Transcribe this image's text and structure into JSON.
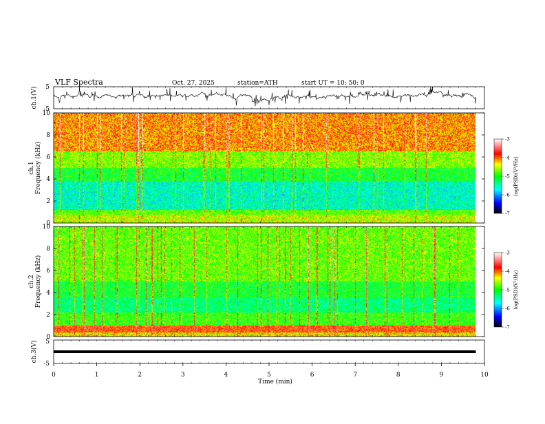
{
  "header": {
    "title": "VLF  Spectra",
    "date": "Oct. 27, 2025",
    "station": "station=ATH",
    "start_ut": "start  UT  =    10: 50: 0"
  },
  "chart_data": [
    {
      "type": "line",
      "name": "ch1-voltage",
      "ylabel": "ch.1(V)",
      "ylim": [
        -5,
        5
      ],
      "yticks": [
        "5",
        "-5"
      ],
      "xlim": [
        0,
        10
      ],
      "description_note": "",
      "x_step_min": 0.01
    },
    {
      "type": "heatmap",
      "name": "ch1-spectrogram",
      "ylabel_lines": [
        "ch.1",
        "Frequency  (kHz)"
      ],
      "ylim": [
        0,
        10
      ],
      "yticks": [
        "0",
        "2",
        "4",
        "6",
        "8",
        "10"
      ],
      "xlim": [
        0,
        10
      ],
      "colorbar": {
        "label": "log(PSD)(V²/Hz)",
        "range": [
          -7,
          -3
        ],
        "ticks": [
          "-3",
          "-4",
          "-5",
          "-6",
          "-7"
        ]
      }
    },
    {
      "type": "heatmap",
      "name": "ch2-spectrogram",
      "ylabel_lines": [
        "ch.2",
        "Frequency  (kHz)"
      ],
      "ylim": [
        0,
        10
      ],
      "yticks": [
        "0",
        "2",
        "4",
        "6",
        "8",
        "10"
      ],
      "xlim": [
        0,
        10
      ],
      "colorbar": {
        "label": "log(PSD)(V²/Hz)",
        "range": [
          -7,
          -3
        ],
        "ticks": [
          "-3",
          "-4",
          "-5",
          "-6",
          "-7"
        ]
      }
    },
    {
      "type": "line",
      "name": "ch3-voltage",
      "ylabel": "ch.3(V)",
      "ylim": [
        -5,
        5
      ],
      "yticks": [
        "5",
        "-5"
      ],
      "xlim": [
        0,
        10
      ],
      "baseline_value": 0
    }
  ],
  "xaxis": {
    "label": "Time  (min)",
    "ticks": [
      "0",
      "1",
      "2",
      "3",
      "4",
      "5",
      "6",
      "7",
      "8",
      "9",
      "10"
    ],
    "data_end": 9.8
  },
  "colors": {
    "scale": [
      "#000000",
      "#0000ff",
      "#00ffff",
      "#00ff00",
      "#ffff00",
      "#ff0000",
      "#ffffff"
    ]
  }
}
